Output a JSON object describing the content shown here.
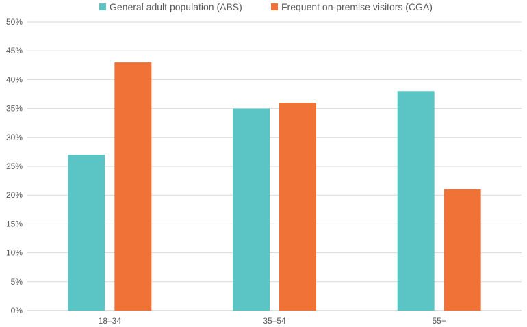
{
  "chart_data": {
    "type": "bar",
    "categories": [
      "18–34",
      "35–54",
      "55+"
    ],
    "series": [
      {
        "name": "General adult population (ABS)",
        "values": [
          27,
          35,
          38
        ],
        "color": "#5bc4c4"
      },
      {
        "name": "Frequent on-premise visitors (CGA)",
        "values": [
          43,
          36,
          21
        ],
        "color": "#f07236"
      }
    ],
    "ylim": [
      0,
      50
    ],
    "yticks": [
      0,
      5,
      10,
      15,
      20,
      25,
      30,
      35,
      40,
      45,
      50
    ],
    "ytick_labels": [
      "0%",
      "5%",
      "10%",
      "15%",
      "20%",
      "25%",
      "30%",
      "35%",
      "40%",
      "45%",
      "50%"
    ],
    "grid": "horizontal",
    "legend_position": "top"
  }
}
